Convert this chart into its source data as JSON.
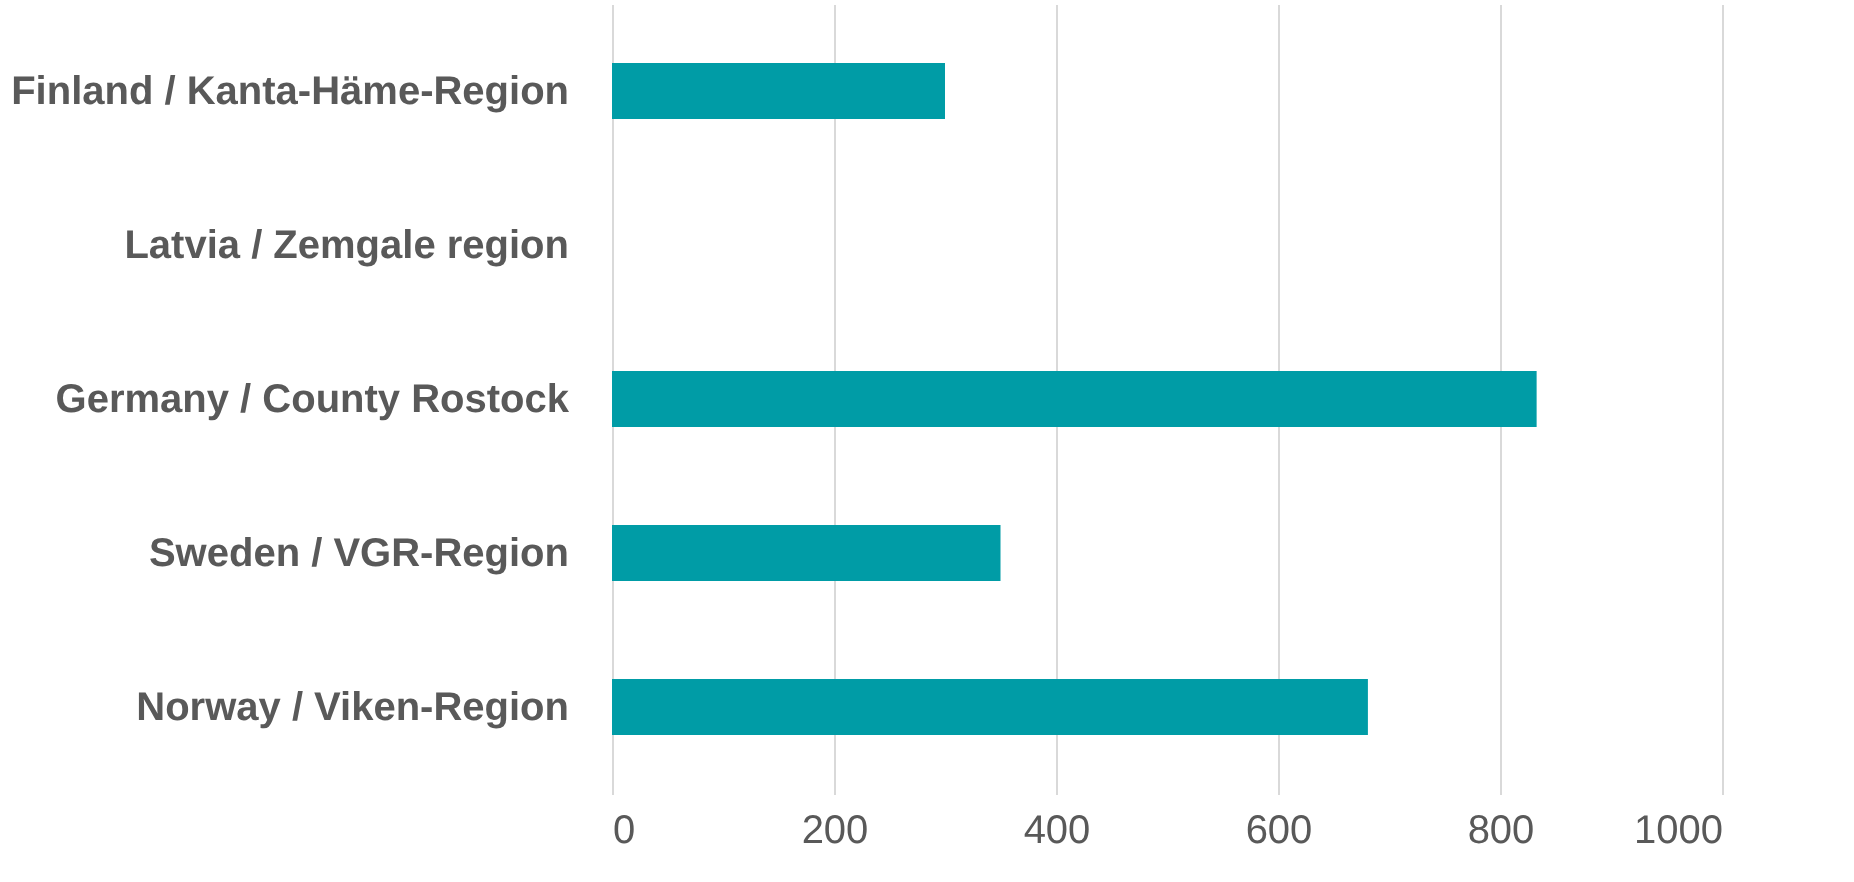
{
  "chart_data": {
    "type": "bar",
    "orientation": "horizontal",
    "categories": [
      "Finland / Kanta-Häme-Region",
      "Latvia / Zemgale region",
      "Germany / County Rostock",
      "Sweden / VGR-Region",
      "Norway / Viken-Region"
    ],
    "values": [
      300,
      0,
      833,
      350,
      681
    ],
    "color": "#009ca6",
    "xlim": [
      0,
      1000
    ],
    "xticks": [
      0,
      200,
      400,
      600,
      800,
      1000
    ],
    "grid": "x"
  }
}
